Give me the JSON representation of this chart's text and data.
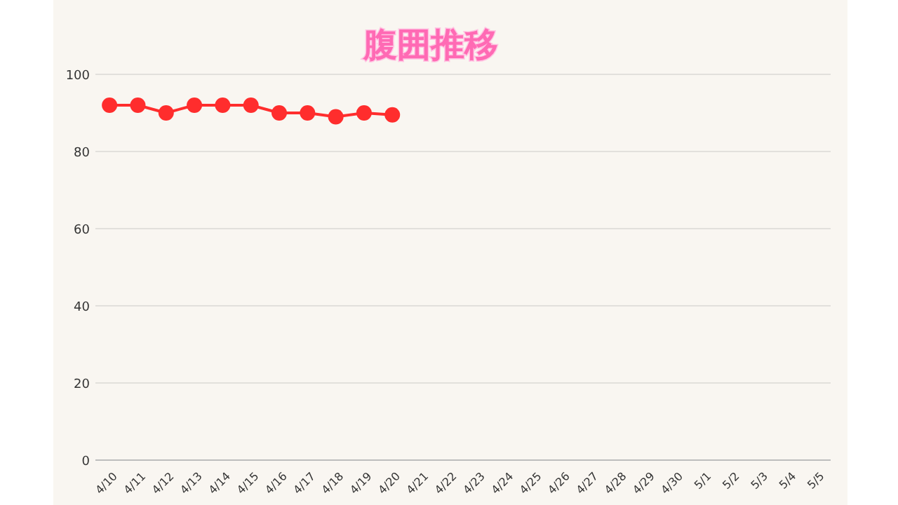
{
  "chart_data": {
    "type": "line",
    "title": "腹囲推移",
    "categories": [
      "4/10",
      "4/11",
      "4/12",
      "4/13",
      "4/14",
      "4/15",
      "4/16",
      "4/17",
      "4/18",
      "4/19",
      "4/20",
      "4/21",
      "4/22",
      "4/23",
      "4/24",
      "4/25",
      "4/26",
      "4/27",
      "4/28",
      "4/29",
      "4/30",
      "5/1",
      "5/2",
      "5/3",
      "5/4",
      "5/5"
    ],
    "series": [
      {
        "color": "#ff2d2d",
        "values": [
          92,
          92,
          90,
          92,
          92,
          92,
          90,
          90,
          89,
          90,
          89.5,
          null,
          null,
          null,
          null,
          null,
          null,
          null,
          null,
          null,
          null,
          null,
          null,
          null,
          null,
          null
        ]
      }
    ],
    "ylim": [
      0,
      100
    ],
    "yticks": [
      0,
      20,
      40,
      60,
      80,
      100
    ],
    "grid": "y",
    "marker": "circle",
    "line_style": "solid"
  }
}
